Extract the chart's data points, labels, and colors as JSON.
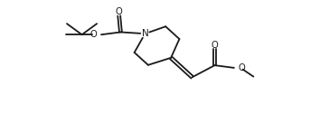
{
  "background": "#ffffff",
  "line_color": "#1a1a1a",
  "line_width": 1.3,
  "figsize": [
    3.54,
    1.38
  ],
  "dpi": 100,
  "xlim": [
    0,
    10.2
  ],
  "ylim": [
    0,
    3.6
  ]
}
